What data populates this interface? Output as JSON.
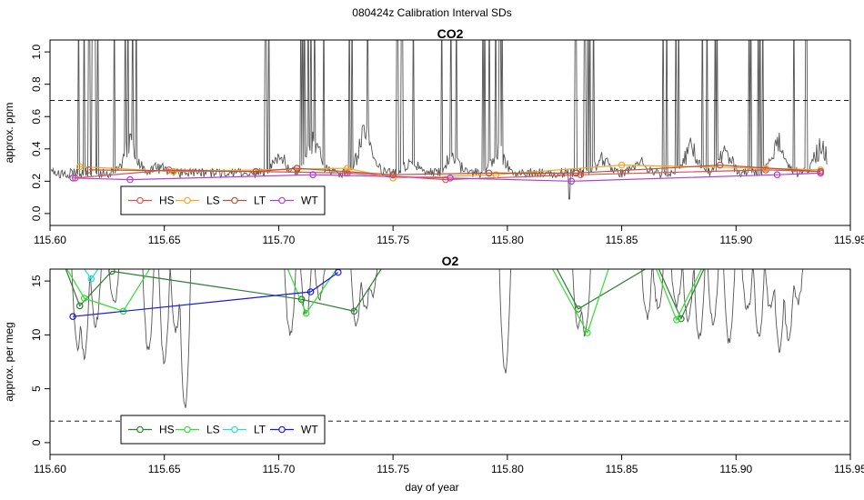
{
  "figure": {
    "title": "080424z   Calibration Interval SDs",
    "xlabel": "day of year"
  },
  "chart_data": [
    {
      "type": "line",
      "title": "CO2",
      "ylabel": "approx. ppm",
      "xlim": [
        115.6,
        115.95
      ],
      "ylim": [
        0.0,
        1.0
      ],
      "xticks": [
        115.6,
        115.65,
        115.7,
        115.75,
        115.8,
        115.85,
        115.9,
        115.95
      ],
      "xtick_labels": [
        "115.60",
        "115.65",
        "115.70",
        "115.75",
        "115.80",
        "115.85",
        "115.90",
        "115.95"
      ],
      "yticks": [
        0.0,
        0.2,
        0.4,
        0.6,
        0.8,
        1.0
      ],
      "ytick_labels": [
        "0.0",
        "0.2",
        "0.4",
        "0.6",
        "0.8",
        "1.0"
      ],
      "threshold": 0.7,
      "legend_position": "bottom-left",
      "raw_trace": {
        "color": "#555555",
        "spike_windows": [
          [
            115.611,
            115.622
          ],
          [
            115.627,
            115.638
          ],
          [
            115.69,
            115.697
          ],
          [
            115.708,
            115.72
          ],
          [
            115.729,
            115.74
          ],
          [
            115.75,
            115.76
          ],
          [
            115.769,
            115.778
          ],
          [
            115.789,
            115.798
          ],
          [
            115.828,
            115.838
          ],
          [
            115.867,
            115.876
          ],
          [
            115.885,
            115.894
          ],
          [
            115.905,
            115.915
          ],
          [
            115.925,
            115.933
          ]
        ],
        "bumps": [
          [
            115.635,
            0.46
          ],
          [
            115.647,
            0.3
          ],
          [
            115.7,
            0.36
          ],
          [
            115.715,
            0.48
          ],
          [
            115.738,
            0.58
          ],
          [
            115.758,
            0.32
          ],
          [
            115.776,
            0.36
          ],
          [
            115.796,
            0.4
          ],
          [
            115.842,
            0.36
          ],
          [
            115.858,
            0.34
          ],
          [
            115.88,
            0.42
          ],
          [
            115.895,
            0.4
          ],
          [
            115.918,
            0.46
          ],
          [
            115.937,
            0.44
          ]
        ],
        "drops": [
          [
            115.6,
            0.01
          ],
          [
            115.827,
            0.09
          ]
        ],
        "end_x": 115.94
      },
      "series": [
        {
          "name": "HS",
          "color": "#e05050",
          "x": [
            115.611,
            115.652,
            115.73,
            115.773,
            115.832,
            115.913,
            115.937
          ],
          "y": [
            0.22,
            0.27,
            0.25,
            0.21,
            0.24,
            0.27,
            0.26
          ]
        },
        {
          "name": "LS",
          "color": "#f5a623",
          "x": [
            115.613,
            115.654,
            115.73,
            115.75,
            115.795,
            115.85,
            115.913,
            115.937
          ],
          "y": [
            0.29,
            0.26,
            0.28,
            0.22,
            0.24,
            0.3,
            0.28,
            0.27
          ]
        },
        {
          "name": "LT",
          "color": "#b5533c",
          "x": [
            115.617,
            115.69,
            115.708,
            115.75,
            115.792,
            115.83,
            115.893,
            115.937
          ],
          "y": [
            0.27,
            0.26,
            0.28,
            0.24,
            0.25,
            0.25,
            0.3,
            0.26
          ]
        },
        {
          "name": "WT",
          "color": "#b040d0",
          "x": [
            115.61,
            115.635,
            115.715,
            115.775,
            115.828,
            115.918,
            115.937
          ],
          "y": [
            0.22,
            0.21,
            0.24,
            0.22,
            0.2,
            0.24,
            0.25
          ]
        }
      ]
    },
    {
      "type": "line",
      "title": "O2",
      "ylabel": "approx. per meg",
      "xlim": [
        115.6,
        115.95
      ],
      "ylim": [
        0,
        15
      ],
      "xticks": [
        115.6,
        115.65,
        115.7,
        115.75,
        115.8,
        115.85,
        115.9,
        115.95
      ],
      "xtick_labels": [
        "115.60",
        "115.65",
        "115.70",
        "115.75",
        "115.80",
        "115.85",
        "115.90",
        "115.95"
      ],
      "yticks": [
        0,
        5,
        10,
        15
      ],
      "ytick_labels": [
        "0",
        "5",
        "10",
        "15"
      ],
      "threshold": 2,
      "legend_position": "bottom-left",
      "raw_trace": {
        "color": "#555555",
        "dips": [
          [
            115.612,
            8.4
          ],
          [
            115.615,
            7.4
          ],
          [
            115.62,
            10.6
          ],
          [
            115.628,
            12.5
          ],
          [
            115.643,
            8.2
          ],
          [
            115.65,
            7.1
          ],
          [
            115.655,
            10.0
          ],
          [
            115.659,
            2.8
          ],
          [
            115.705,
            9.6
          ],
          [
            115.712,
            11.5
          ],
          [
            115.718,
            13.0
          ],
          [
            115.734,
            10.7
          ],
          [
            115.738,
            12.1
          ],
          [
            115.741,
            13.4
          ],
          [
            115.799,
            6.2
          ],
          [
            115.831,
            10.1
          ],
          [
            115.834,
            9.6
          ],
          [
            115.861,
            11.2
          ],
          [
            115.866,
            12.1
          ],
          [
            115.874,
            12.5
          ],
          [
            115.879,
            11.1
          ],
          [
            115.884,
            9.3
          ],
          [
            115.89,
            10.8
          ],
          [
            115.897,
            8.9
          ],
          [
            115.905,
            11.9
          ],
          [
            115.91,
            9.6
          ],
          [
            115.915,
            12.1
          ],
          [
            115.919,
            8.2
          ],
          [
            115.923,
            9.0
          ],
          [
            115.927,
            12.5
          ]
        ]
      },
      "series": [
        {
          "name": "HS",
          "color": "#2e7d32",
          "x": [
            115.606,
            115.613,
            115.627,
            115.71,
            115.733,
            115.746,
            115.82,
            115.831,
            115.865,
            115.876,
            115.887
          ],
          "y": [
            16.6,
            12.7,
            15.9,
            13.3,
            12.2,
            16.5,
            16.8,
            12.4,
            16.7,
            11.5,
            16.6
          ]
        },
        {
          "name": "LS",
          "color": "#33dd33",
          "x": [
            115.606,
            115.615,
            115.632,
            115.645,
            115.703,
            115.712,
            115.727,
            115.818,
            115.835,
            115.845,
            115.864,
            115.874,
            115.886
          ],
          "y": [
            16.6,
            13.4,
            12.2,
            16.6,
            16.6,
            12.0,
            16.6,
            16.8,
            10.2,
            16.6,
            16.7,
            11.4,
            16.6
          ]
        },
        {
          "name": "LT",
          "color": "#22dddd",
          "x": [
            115.614,
            115.618,
            115.622
          ],
          "y": [
            16.4,
            15.2,
            16.4
          ]
        },
        {
          "name": "WT",
          "color": "#1a1add",
          "x": [
            115.61,
            115.714,
            115.726
          ],
          "y": [
            11.7,
            14.0,
            15.8
          ]
        }
      ]
    }
  ]
}
